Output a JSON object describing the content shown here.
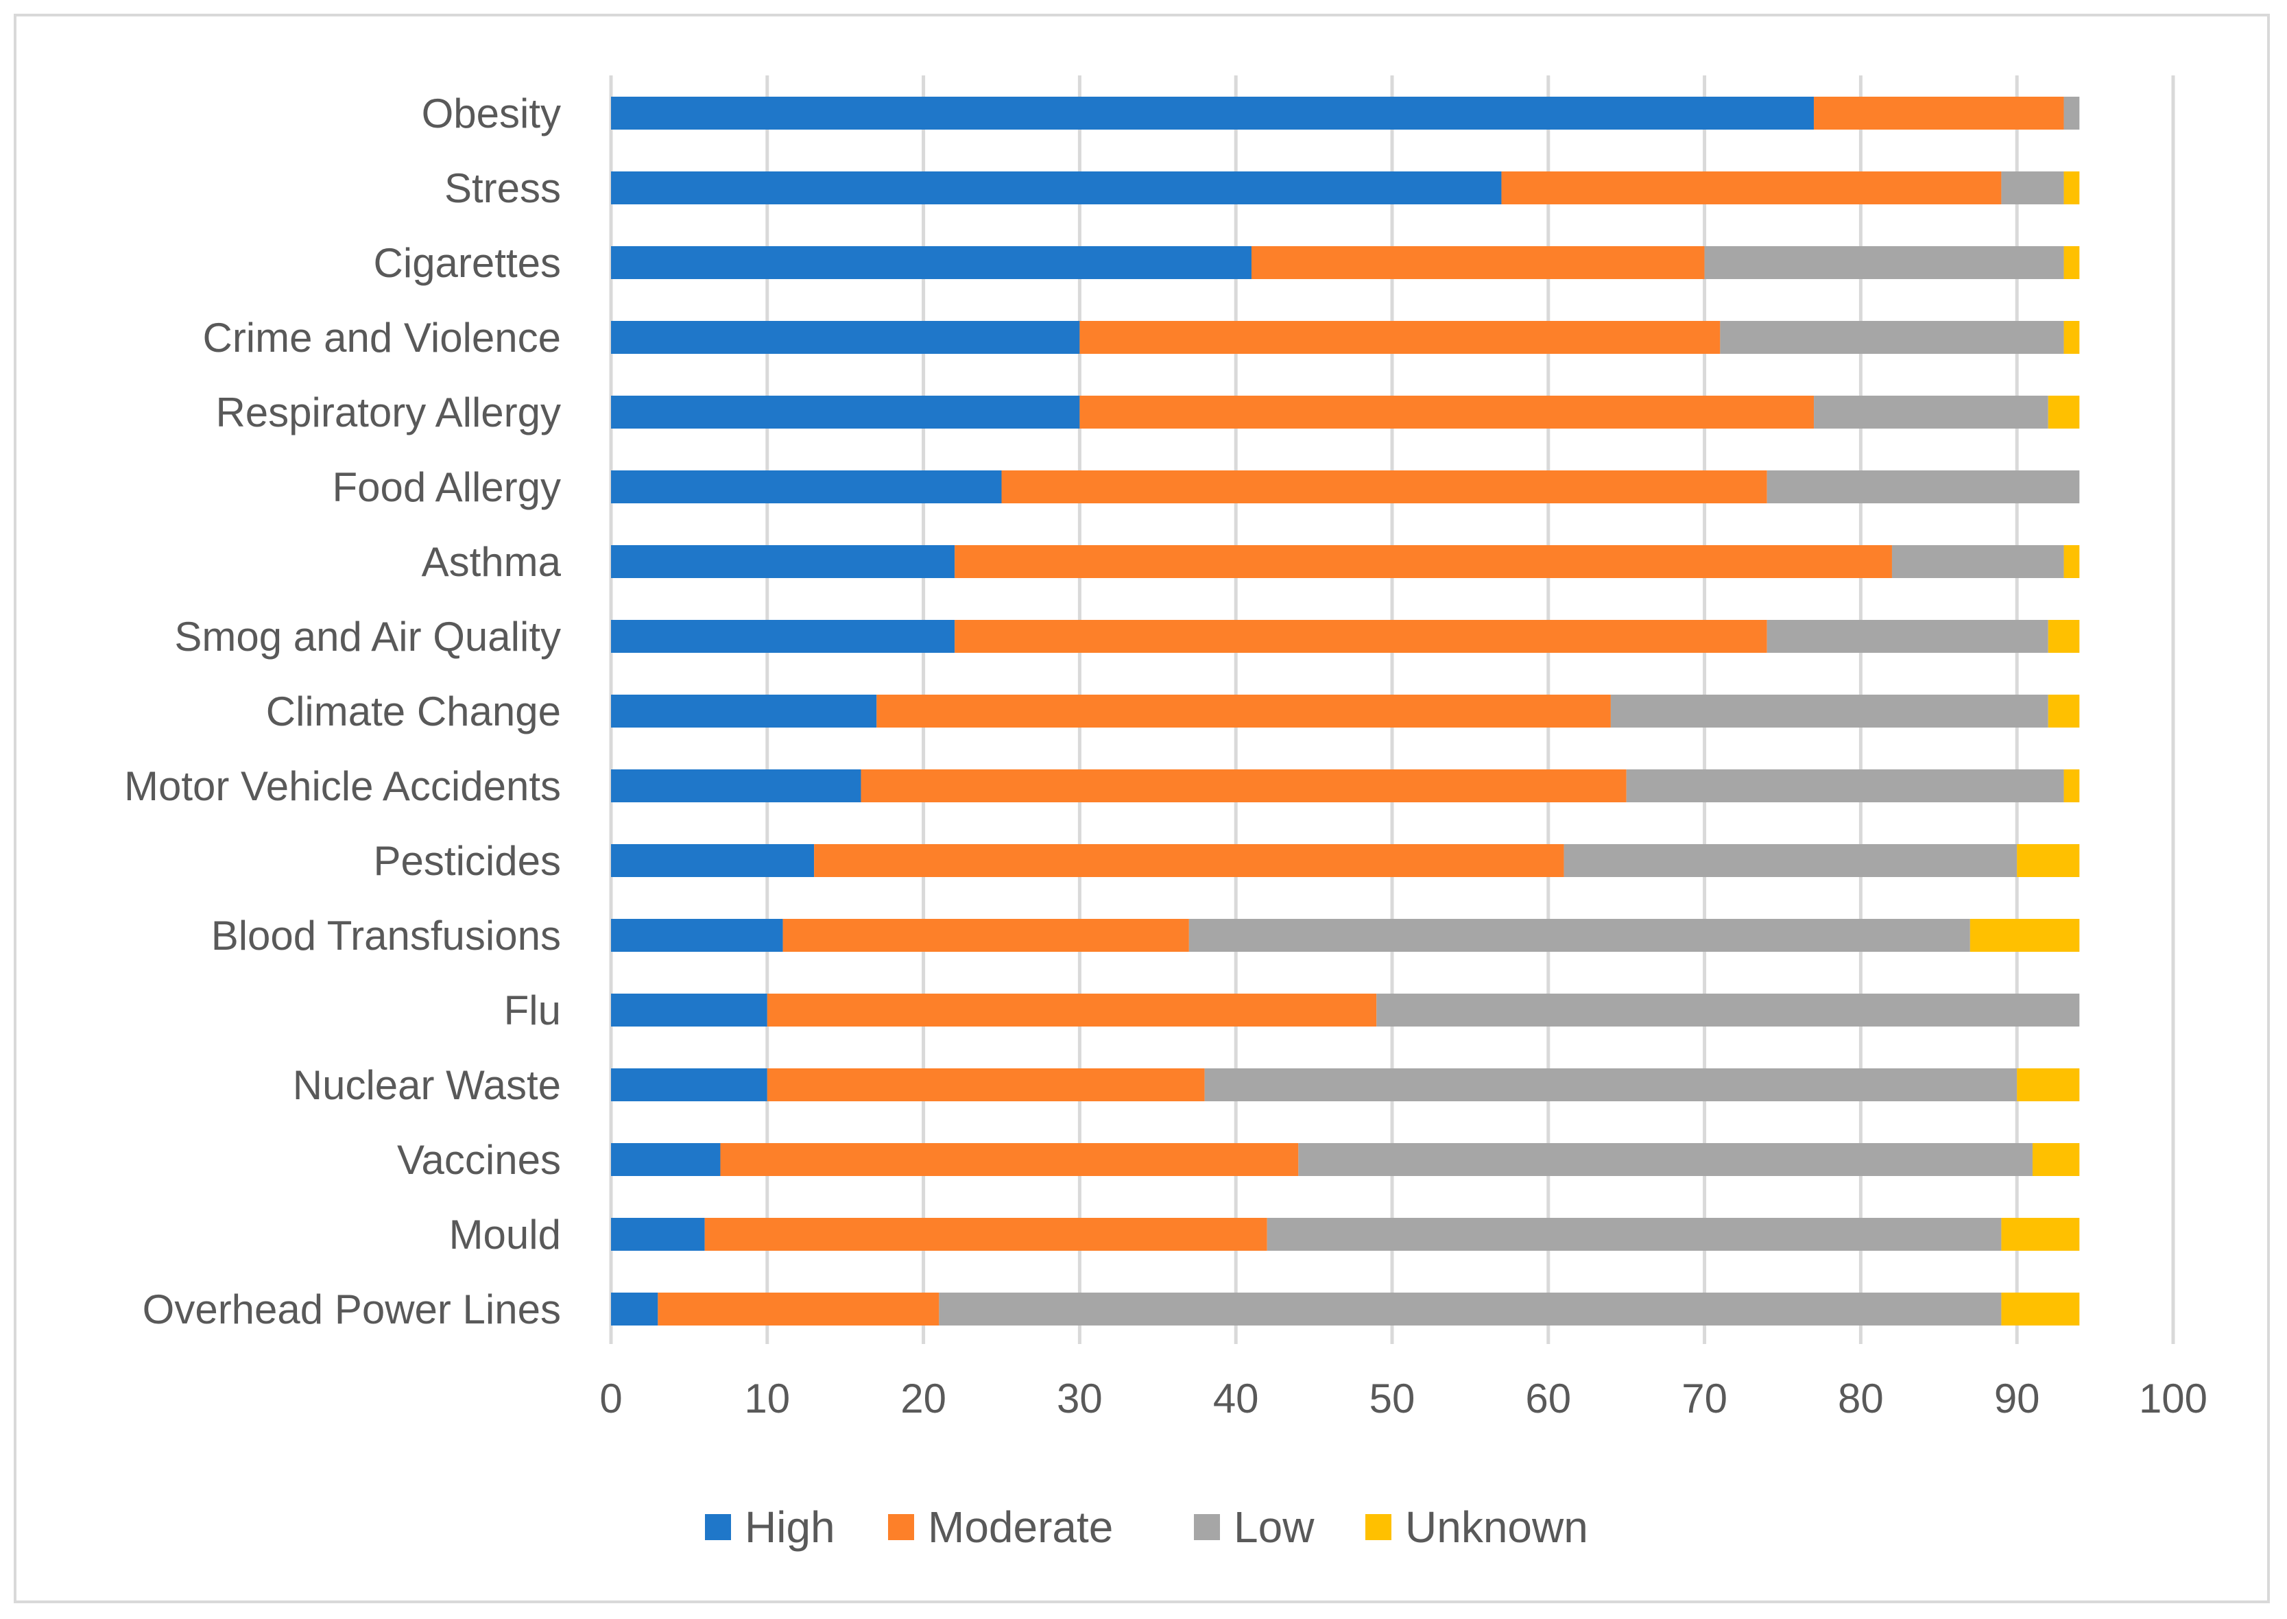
{
  "chart_data": {
    "type": "bar",
    "orientation": "horizontal",
    "stacked": true,
    "title": "",
    "xlabel": "",
    "ylabel": "",
    "xlim": [
      0,
      100
    ],
    "xticks": [
      "0",
      "10",
      "20",
      "30",
      "40",
      "50",
      "60",
      "70",
      "80",
      "90",
      "100"
    ],
    "grid": "vertical",
    "legend_position": "bottom",
    "categories": [
      "Obesity",
      "Stress",
      "Cigarettes",
      "Crime and Violence",
      "Respiratory Allergy",
      "Food Allergy",
      "Asthma",
      "Smog and Air Quality",
      "Climate Change",
      "Motor Vehicle Accidents",
      "Pesticides",
      "Blood Transfusions",
      "Flu",
      "Nuclear Waste",
      "Vaccines",
      "Mould",
      "Overhead Power Lines"
    ],
    "series": [
      {
        "name": "High",
        "color": "#1f77c9",
        "values": [
          77,
          57,
          41,
          30,
          30,
          25,
          22,
          22,
          17,
          16,
          13,
          11,
          10,
          10,
          7,
          6,
          3
        ]
      },
      {
        "name": "Moderate",
        "color": "#fd8029",
        "values": [
          16,
          32,
          29,
          41,
          47,
          49,
          60,
          52,
          47,
          49,
          48,
          26,
          39,
          28,
          37,
          36,
          18
        ]
      },
      {
        "name": "Low",
        "color": "#a6a6a6",
        "values": [
          1,
          4,
          23,
          22,
          15,
          20,
          11,
          18,
          28,
          28,
          29,
          50,
          45,
          52,
          47,
          47,
          68
        ]
      },
      {
        "name": "Unknown",
        "color": "#ffc000",
        "values": [
          0,
          1,
          1,
          1,
          2,
          0,
          1,
          2,
          2,
          1,
          4,
          7,
          0,
          4,
          3,
          5,
          5
        ]
      }
    ]
  }
}
